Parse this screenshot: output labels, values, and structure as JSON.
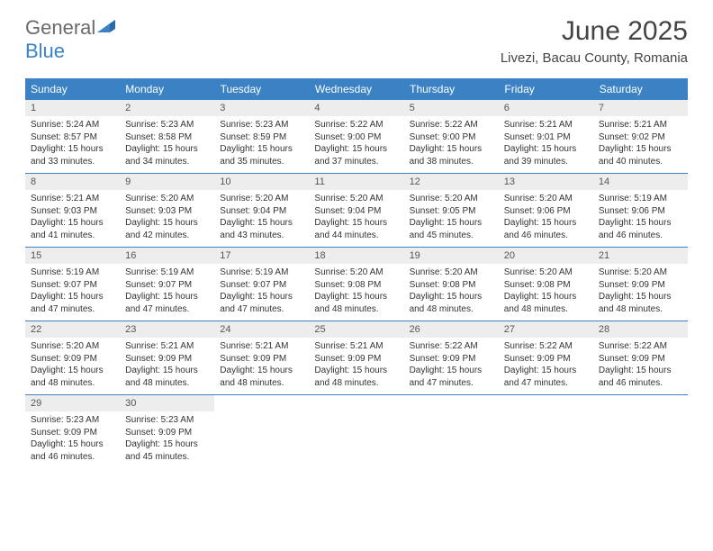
{
  "logo": {
    "general": "General",
    "blue": "Blue"
  },
  "title": "June 2025",
  "location": "Livezi, Bacau County, Romania",
  "colors": {
    "header_blue": "#3b82c4",
    "day_num_bg": "#ededed",
    "text_dark": "#333333",
    "logo_gray": "#6a6a6a"
  },
  "daysOfWeek": [
    "Sunday",
    "Monday",
    "Tuesday",
    "Wednesday",
    "Thursday",
    "Friday",
    "Saturday"
  ],
  "weeks": [
    [
      {
        "n": "1",
        "l1": "Sunrise: 5:24 AM",
        "l2": "Sunset: 8:57 PM",
        "l3": "Daylight: 15 hours",
        "l4": "and 33 minutes."
      },
      {
        "n": "2",
        "l1": "Sunrise: 5:23 AM",
        "l2": "Sunset: 8:58 PM",
        "l3": "Daylight: 15 hours",
        "l4": "and 34 minutes."
      },
      {
        "n": "3",
        "l1": "Sunrise: 5:23 AM",
        "l2": "Sunset: 8:59 PM",
        "l3": "Daylight: 15 hours",
        "l4": "and 35 minutes."
      },
      {
        "n": "4",
        "l1": "Sunrise: 5:22 AM",
        "l2": "Sunset: 9:00 PM",
        "l3": "Daylight: 15 hours",
        "l4": "and 37 minutes."
      },
      {
        "n": "5",
        "l1": "Sunrise: 5:22 AM",
        "l2": "Sunset: 9:00 PM",
        "l3": "Daylight: 15 hours",
        "l4": "and 38 minutes."
      },
      {
        "n": "6",
        "l1": "Sunrise: 5:21 AM",
        "l2": "Sunset: 9:01 PM",
        "l3": "Daylight: 15 hours",
        "l4": "and 39 minutes."
      },
      {
        "n": "7",
        "l1": "Sunrise: 5:21 AM",
        "l2": "Sunset: 9:02 PM",
        "l3": "Daylight: 15 hours",
        "l4": "and 40 minutes."
      }
    ],
    [
      {
        "n": "8",
        "l1": "Sunrise: 5:21 AM",
        "l2": "Sunset: 9:03 PM",
        "l3": "Daylight: 15 hours",
        "l4": "and 41 minutes."
      },
      {
        "n": "9",
        "l1": "Sunrise: 5:20 AM",
        "l2": "Sunset: 9:03 PM",
        "l3": "Daylight: 15 hours",
        "l4": "and 42 minutes."
      },
      {
        "n": "10",
        "l1": "Sunrise: 5:20 AM",
        "l2": "Sunset: 9:04 PM",
        "l3": "Daylight: 15 hours",
        "l4": "and 43 minutes."
      },
      {
        "n": "11",
        "l1": "Sunrise: 5:20 AM",
        "l2": "Sunset: 9:04 PM",
        "l3": "Daylight: 15 hours",
        "l4": "and 44 minutes."
      },
      {
        "n": "12",
        "l1": "Sunrise: 5:20 AM",
        "l2": "Sunset: 9:05 PM",
        "l3": "Daylight: 15 hours",
        "l4": "and 45 minutes."
      },
      {
        "n": "13",
        "l1": "Sunrise: 5:20 AM",
        "l2": "Sunset: 9:06 PM",
        "l3": "Daylight: 15 hours",
        "l4": "and 46 minutes."
      },
      {
        "n": "14",
        "l1": "Sunrise: 5:19 AM",
        "l2": "Sunset: 9:06 PM",
        "l3": "Daylight: 15 hours",
        "l4": "and 46 minutes."
      }
    ],
    [
      {
        "n": "15",
        "l1": "Sunrise: 5:19 AM",
        "l2": "Sunset: 9:07 PM",
        "l3": "Daylight: 15 hours",
        "l4": "and 47 minutes."
      },
      {
        "n": "16",
        "l1": "Sunrise: 5:19 AM",
        "l2": "Sunset: 9:07 PM",
        "l3": "Daylight: 15 hours",
        "l4": "and 47 minutes."
      },
      {
        "n": "17",
        "l1": "Sunrise: 5:19 AM",
        "l2": "Sunset: 9:07 PM",
        "l3": "Daylight: 15 hours",
        "l4": "and 47 minutes."
      },
      {
        "n": "18",
        "l1": "Sunrise: 5:20 AM",
        "l2": "Sunset: 9:08 PM",
        "l3": "Daylight: 15 hours",
        "l4": "and 48 minutes."
      },
      {
        "n": "19",
        "l1": "Sunrise: 5:20 AM",
        "l2": "Sunset: 9:08 PM",
        "l3": "Daylight: 15 hours",
        "l4": "and 48 minutes."
      },
      {
        "n": "20",
        "l1": "Sunrise: 5:20 AM",
        "l2": "Sunset: 9:08 PM",
        "l3": "Daylight: 15 hours",
        "l4": "and 48 minutes."
      },
      {
        "n": "21",
        "l1": "Sunrise: 5:20 AM",
        "l2": "Sunset: 9:09 PM",
        "l3": "Daylight: 15 hours",
        "l4": "and 48 minutes."
      }
    ],
    [
      {
        "n": "22",
        "l1": "Sunrise: 5:20 AM",
        "l2": "Sunset: 9:09 PM",
        "l3": "Daylight: 15 hours",
        "l4": "and 48 minutes."
      },
      {
        "n": "23",
        "l1": "Sunrise: 5:21 AM",
        "l2": "Sunset: 9:09 PM",
        "l3": "Daylight: 15 hours",
        "l4": "and 48 minutes."
      },
      {
        "n": "24",
        "l1": "Sunrise: 5:21 AM",
        "l2": "Sunset: 9:09 PM",
        "l3": "Daylight: 15 hours",
        "l4": "and 48 minutes."
      },
      {
        "n": "25",
        "l1": "Sunrise: 5:21 AM",
        "l2": "Sunset: 9:09 PM",
        "l3": "Daylight: 15 hours",
        "l4": "and 48 minutes."
      },
      {
        "n": "26",
        "l1": "Sunrise: 5:22 AM",
        "l2": "Sunset: 9:09 PM",
        "l3": "Daylight: 15 hours",
        "l4": "and 47 minutes."
      },
      {
        "n": "27",
        "l1": "Sunrise: 5:22 AM",
        "l2": "Sunset: 9:09 PM",
        "l3": "Daylight: 15 hours",
        "l4": "and 47 minutes."
      },
      {
        "n": "28",
        "l1": "Sunrise: 5:22 AM",
        "l2": "Sunset: 9:09 PM",
        "l3": "Daylight: 15 hours",
        "l4": "and 46 minutes."
      }
    ],
    [
      {
        "n": "29",
        "l1": "Sunrise: 5:23 AM",
        "l2": "Sunset: 9:09 PM",
        "l3": "Daylight: 15 hours",
        "l4": "and 46 minutes."
      },
      {
        "n": "30",
        "l1": "Sunrise: 5:23 AM",
        "l2": "Sunset: 9:09 PM",
        "l3": "Daylight: 15 hours",
        "l4": "and 45 minutes."
      },
      {
        "empty": true
      },
      {
        "empty": true
      },
      {
        "empty": true
      },
      {
        "empty": true
      },
      {
        "empty": true
      }
    ]
  ]
}
